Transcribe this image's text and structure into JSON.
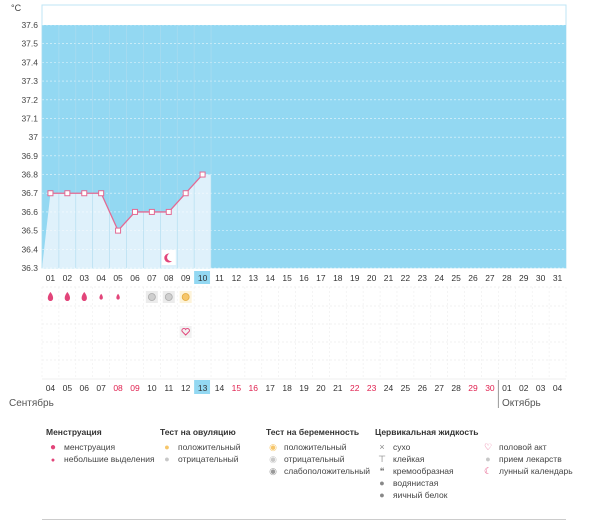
{
  "chart_data": {
    "type": "line",
    "ylabel": "°C",
    "ylim": [
      36.3,
      37.6
    ],
    "yticks": [
      "36.3",
      "36.4",
      "36.5",
      "36.6",
      "36.7",
      "36.8",
      "36.9",
      "37",
      "37.1",
      "37.2",
      "37.3",
      "37.4",
      "37.5",
      "37.6"
    ],
    "cycle_days": [
      "01",
      "02",
      "03",
      "04",
      "05",
      "06",
      "07",
      "08",
      "09",
      "10",
      "11",
      "12",
      "13",
      "14",
      "15",
      "16",
      "17",
      "18",
      "19",
      "20",
      "21",
      "22",
      "23",
      "24",
      "25",
      "26",
      "27",
      "28",
      "29",
      "30",
      "31"
    ],
    "current_day_index": 9,
    "dates_sep": [
      "04",
      "05",
      "06",
      "07",
      "08",
      "09",
      "10",
      "11",
      "12",
      "13",
      "14",
      "15",
      "16",
      "17",
      "18",
      "19",
      "20",
      "21",
      "22",
      "23",
      "24",
      "25",
      "26",
      "27",
      "28",
      "29",
      "30"
    ],
    "dates_oct": [
      "01",
      "02",
      "03",
      "04"
    ],
    "weekend_dates": [
      "08",
      "09",
      "15",
      "16",
      "22",
      "23",
      "29",
      "30"
    ],
    "highlight_date": "13",
    "month_sep": "Сентябрь",
    "month_oct": "Октябрь",
    "series": [
      {
        "values": [
          36.7,
          36.7,
          36.7,
          36.7,
          36.5,
          36.6,
          36.6,
          36.6,
          36.7,
          36.8
        ]
      }
    ],
    "line_color": "#e36a93",
    "fill_color": "#dff1fb",
    "area_color": "#93d8f2",
    "menstruation_days": [
      0,
      1,
      2,
      3,
      4
    ],
    "menstruation_large": [
      0,
      1,
      2
    ],
    "ovulation_negative_days": [
      6,
      7
    ],
    "ovulation_positive_days": [
      8
    ],
    "lunar_day": 7,
    "intercourse_day": 8
  },
  "legend": {
    "groups": [
      {
        "title": "Менструация",
        "items": [
          {
            "icon": "drop-large-icon",
            "label": "менструация"
          },
          {
            "icon": "drop-small-icon",
            "label": "небольшие выделения"
          }
        ]
      },
      {
        "title": "Тест на овуляцию",
        "items": [
          {
            "icon": "ovulation-positive-icon",
            "label": "положительный"
          },
          {
            "icon": "ovulation-negative-icon",
            "label": "отрицательный"
          }
        ]
      },
      {
        "title": "Тест на беременность",
        "items": [
          {
            "icon": "pregnancy-positive-icon",
            "label": "положительный"
          },
          {
            "icon": "pregnancy-negative-icon",
            "label": "отрицательный"
          },
          {
            "icon": "pregnancy-weak-icon",
            "label": "слабоположительный"
          }
        ]
      },
      {
        "title": "Цервикальная жидкость",
        "items": [
          {
            "icon": "dry-icon",
            "label": "сухо"
          },
          {
            "icon": "sticky-icon",
            "label": "клейкая"
          },
          {
            "icon": "creamy-icon",
            "label": "кремообразная"
          },
          {
            "icon": "watery-icon",
            "label": "водянистая"
          },
          {
            "icon": "eggwhite-icon",
            "label": "яичный белок"
          }
        ]
      },
      {
        "title": "",
        "items": [
          {
            "icon": "heart-icon",
            "label": "половой акт"
          },
          {
            "icon": "pill-icon",
            "label": "прием лекарств"
          },
          {
            "icon": "moon-icon",
            "label": "лунный календарь"
          }
        ]
      }
    ]
  }
}
